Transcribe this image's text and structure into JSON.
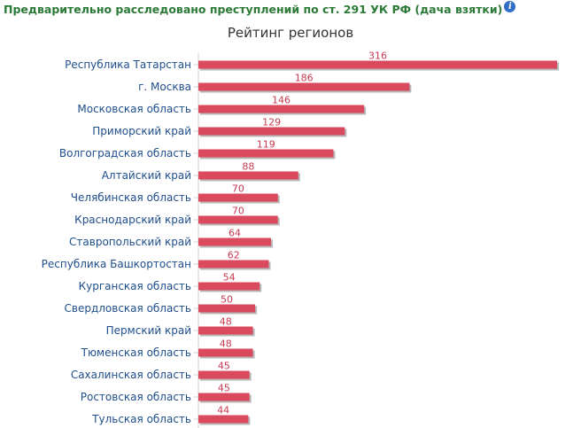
{
  "header": {
    "title": "Предварительно расследовано преступлений по ст. 291 УК РФ (дача взятки)",
    "info_icon": "info-icon"
  },
  "colors": {
    "bar": "#d94a5e",
    "bar_shadow": "#b8b8b8",
    "title": "#2b7a37",
    "category_label": "#1f4e8c",
    "value_label": "#c83a50",
    "info_icon": "#2f6fc6"
  },
  "chart_data": {
    "type": "bar",
    "orientation": "horizontal",
    "title": "Рейтинг регионов",
    "categories": [
      "Республика Татарстан",
      "г. Москва",
      "Московская область",
      "Приморский край",
      "Волгоградская область",
      "Алтайский край",
      "Челябинская область",
      "Краснодарский край",
      "Ставропольский край",
      "Республика Башкортостан",
      "Курганская область",
      "Свердловская область",
      "Пермский край",
      "Тюменская область",
      "Сахалинская область",
      "Ростовская область",
      "Тульская область"
    ],
    "values": [
      316,
      186,
      146,
      129,
      119,
      88,
      70,
      70,
      64,
      62,
      54,
      50,
      48,
      48,
      45,
      45,
      44
    ],
    "data_labels": true,
    "xlim": [
      0,
      316
    ],
    "grid": false,
    "legend": "none",
    "xlabel": "",
    "ylabel": ""
  }
}
